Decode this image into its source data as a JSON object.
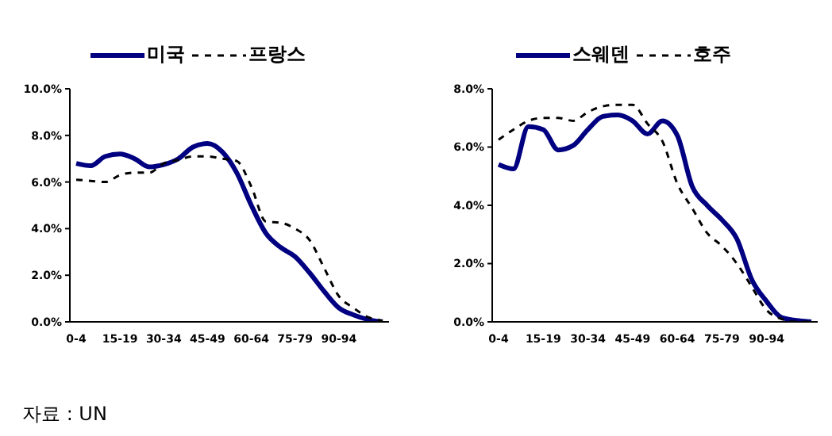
{
  "chart_data": [
    {
      "type": "line",
      "categories": [
        "0-4",
        null,
        null,
        "15-19",
        null,
        null,
        "30-34",
        null,
        null,
        "45-49",
        null,
        null,
        "60-64",
        null,
        null,
        "75-79",
        null,
        null,
        "90-94",
        null,
        null,
        null
      ],
      "series": [
        {
          "name": "미국",
          "color": "#000080",
          "line_style": "solid",
          "values": [
            6.8,
            6.7,
            7.1,
            7.2,
            7.0,
            6.65,
            6.75,
            7.0,
            7.5,
            7.65,
            7.3,
            6.4,
            5.0,
            3.8,
            3.2,
            2.8,
            2.1,
            1.3,
            0.6,
            0.3,
            0.1,
            0.0
          ]
        },
        {
          "name": "프랑스",
          "color": "#000000",
          "line_style": "dashed",
          "values": [
            6.1,
            6.05,
            6.0,
            6.3,
            6.4,
            6.4,
            6.8,
            6.95,
            7.1,
            7.1,
            7.0,
            6.9,
            5.8,
            4.3,
            4.25,
            4.0,
            3.5,
            2.3,
            1.1,
            0.6,
            0.2,
            0.05
          ]
        }
      ],
      "ylim": [
        0,
        10
      ],
      "yticks": [
        {
          "value": 0,
          "label": "0.0%"
        },
        {
          "value": 2,
          "label": "2.0%"
        },
        {
          "value": 4,
          "label": "4.0%"
        },
        {
          "value": 6,
          "label": "6.0%"
        },
        {
          "value": 8,
          "label": "8.0%"
        },
        {
          "value": 10,
          "label": "10.0%"
        }
      ],
      "legend": "top",
      "grid": false,
      "marker": "none",
      "annotations": [
        "자료 : UN"
      ]
    },
    {
      "type": "line",
      "categories": [
        "0-4",
        null,
        null,
        "15-19",
        null,
        null,
        "30-34",
        null,
        null,
        "45-49",
        null,
        null,
        "60-64",
        null,
        null,
        "75-79",
        null,
        null,
        "90-94",
        null,
        null,
        null
      ],
      "series": [
        {
          "name": "스웨덴",
          "color": "#000080",
          "line_style": "solid",
          "values": [
            5.4,
            5.25,
            6.7,
            6.6,
            5.9,
            6.05,
            6.6,
            7.05,
            7.1,
            6.9,
            6.45,
            6.9,
            6.4,
            4.65,
            4.0,
            3.5,
            2.85,
            1.45,
            0.7,
            0.15,
            0.05,
            0.0
          ]
        },
        {
          "name": "호주",
          "color": "#000000",
          "line_style": "dashed",
          "values": [
            6.25,
            6.6,
            6.9,
            7.0,
            7.0,
            6.9,
            7.2,
            7.4,
            7.45,
            7.45,
            6.8,
            6.2,
            4.75,
            3.9,
            3.05,
            2.6,
            2.0,
            1.2,
            0.4,
            0.1,
            0.0,
            0.0
          ]
        }
      ],
      "ylim": [
        0,
        8
      ],
      "yticks": [
        {
          "value": 0,
          "label": "0.0%"
        },
        {
          "value": 2,
          "label": "2.0%"
        },
        {
          "value": 4,
          "label": "4.0%"
        },
        {
          "value": 6,
          "label": "6.0%"
        },
        {
          "value": 8,
          "label": "8.0%"
        }
      ],
      "legend": "top",
      "grid": false,
      "marker": "none"
    }
  ]
}
